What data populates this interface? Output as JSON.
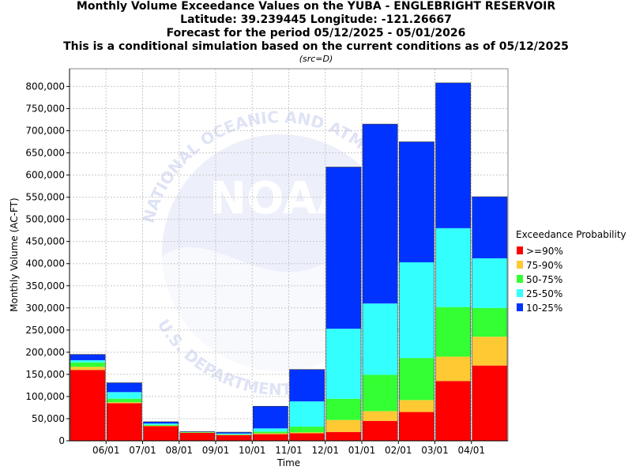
{
  "titles": {
    "line1": "Monthly Volume Exceedance Values on the YUBA - ENGLEBRIGHT RESERVOIR",
    "line2": "Latitude: 39.239445 Longitude: -121.26667",
    "line3": "Forecast for the period 05/12/2025 - 05/01/2026",
    "line4": "This is a conditional simulation based on the current conditions as of 05/12/2025",
    "src": "(src=D)"
  },
  "watermark": {
    "logo_text": "NOAA",
    "ring_top": "NATIONAL OCEANIC AND ATMOSPHERIC",
    "ring_bottom": "U.S. DEPARTMENT OF COMMERCE"
  },
  "colors": {
    "ge90": "#ff0000",
    "p75_90": "#ffc933",
    "p50_75": "#33ff33",
    "p25_50": "#33ffff",
    "p10_25": "#0033ff",
    "watermark": "#dfe3f5",
    "grid": "#c8c8c8"
  },
  "chart_data": {
    "type": "bar",
    "stacked": true,
    "xlabel": "Time",
    "ylabel": "Monthly Volume (AC-FT)",
    "ylim": [
      0,
      840000
    ],
    "yticks": [
      0,
      50000,
      100000,
      150000,
      200000,
      250000,
      300000,
      350000,
      400000,
      450000,
      500000,
      550000,
      600000,
      650000,
      700000,
      750000,
      800000
    ],
    "ytick_labels": [
      "0",
      "50,000",
      "100,000",
      "150,000",
      "200,000",
      "250,000",
      "300,000",
      "350,000",
      "400,000",
      "450,000",
      "500,000",
      "550,000",
      "600,000",
      "650,000",
      "700,000",
      "750,000",
      "800,000"
    ],
    "xtick_labels": [
      "06/01",
      "07/01",
      "08/01",
      "09/01",
      "10/01",
      "11/01",
      "12/01",
      "01/01",
      "02/01",
      "03/01",
      "04/01"
    ],
    "grid": true,
    "legend": {
      "title": "Exceedance Probability",
      "placement": "right",
      "entries": [
        ">=90%",
        "75-90%",
        "50-75%",
        "25-50%",
        "10-25%"
      ]
    },
    "series": [
      {
        "name": ">=90%",
        "color": "#ff0000",
        "values": [
          160000,
          85000,
          33000,
          18000,
          13000,
          15000,
          17000,
          20000,
          45000,
          65000,
          135000,
          170000
        ]
      },
      {
        "name": "75-90%",
        "color": "#ffc933",
        "values": [
          7000,
          2000,
          1000,
          500,
          500,
          2000,
          2000,
          27000,
          22000,
          27000,
          55000,
          65000
        ]
      },
      {
        "name": "50-75%",
        "color": "#33ff33",
        "values": [
          10000,
          8000,
          2000,
          1000,
          1000,
          4000,
          13000,
          48000,
          82000,
          95000,
          112000,
          65000
        ]
      },
      {
        "name": "25-50%",
        "color": "#33ffff",
        "values": [
          5000,
          15000,
          3000,
          500,
          2000,
          7000,
          57000,
          158000,
          161000,
          216000,
          178000,
          112000
        ]
      },
      {
        "name": "10-25%",
        "color": "#0033ff",
        "values": [
          13000,
          21000,
          4000,
          1000,
          3000,
          50000,
          72000,
          365000,
          405000,
          272000,
          328000,
          139000
        ]
      }
    ],
    "totals": [
      195000,
      131000,
      43000,
      21000,
      19500,
      78000,
      161000,
      618000,
      715000,
      675000,
      808000,
      551000
    ]
  }
}
